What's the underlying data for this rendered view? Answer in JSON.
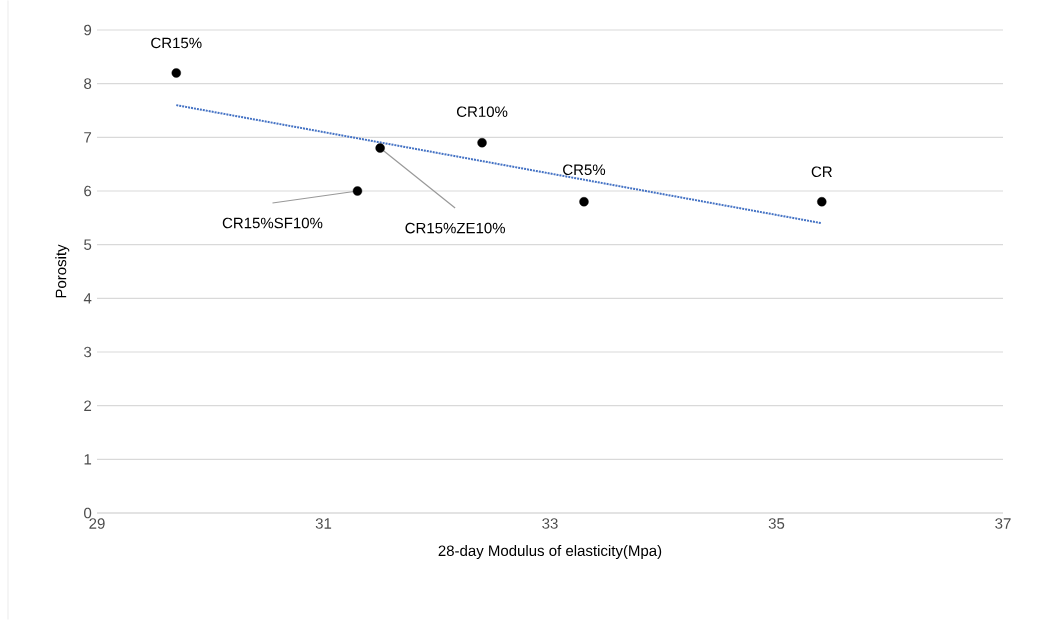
{
  "chart_data": {
    "type": "scatter",
    "xlabel": "28-day Modulus of elasticity(Mpa)",
    "ylabel": "Porosity",
    "xlim": [
      29,
      37
    ],
    "xticks": [
      29,
      31,
      33,
      35,
      37
    ],
    "ylim": [
      0,
      9
    ],
    "yticks": [
      0,
      1,
      2,
      3,
      4,
      5,
      6,
      7,
      8,
      9
    ],
    "grid": "y",
    "series": [
      {
        "marker": "circle",
        "color": "#000000",
        "x": [
          29.7,
          31.5,
          31.3,
          32.4,
          33.3,
          35.4
        ],
        "values": [
          8.2,
          6.8,
          6.0,
          6.9,
          5.8,
          5.8
        ]
      },
      {
        "type": "line",
        "marker": "none",
        "line_style": "dotted",
        "color": "#4472c4",
        "x": [
          29.7,
          35.4
        ],
        "values": [
          7.6,
          5.4
        ]
      }
    ],
    "annotations": [
      {
        "text": "CR15%",
        "x": 29.7,
        "y": 8.2
      },
      {
        "text": "CR15%ZE10%",
        "x": 31.5,
        "y": 6.8
      },
      {
        "text": "CR15%SF10%",
        "x": 31.3,
        "y": 6.0
      },
      {
        "text": "CR10%",
        "x": 32.4,
        "y": 6.9
      },
      {
        "text": "CR5%",
        "x": 33.3,
        "y": 5.8
      },
      {
        "text": "CR",
        "x": 35.4,
        "y": 5.8
      }
    ]
  }
}
